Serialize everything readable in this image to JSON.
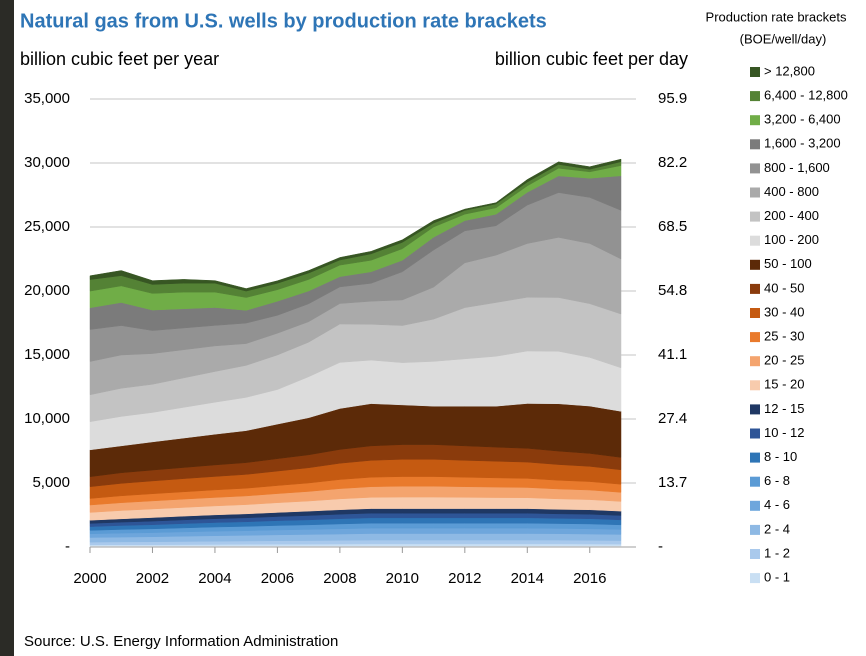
{
  "chart_data": {
    "type": "stacked-area",
    "title": "Natural gas from U.S. wells by production rate brackets",
    "ylabel": "billion cubic feet per year",
    "y2label": "billion cubic feet per day",
    "legend_title": "Production rate brackets",
    "legend_subtitle": "(BOE/well/day)",
    "source": "Source: U.S. Energy Information Administration",
    "x": [
      2000,
      2001,
      2002,
      2003,
      2004,
      2005,
      2006,
      2007,
      2008,
      2009,
      2010,
      2011,
      2012,
      2013,
      2014,
      2015,
      2016,
      2017
    ],
    "xlim": [
      2000,
      2017
    ],
    "xticks": [
      2000,
      2002,
      2004,
      2006,
      2008,
      2010,
      2012,
      2014,
      2016
    ],
    "ylim": [
      0,
      35000
    ],
    "yticks": [
      {
        "value": 0,
        "label": "-"
      },
      {
        "value": 5000,
        "label": "5,000"
      },
      {
        "value": 10000,
        "label": "10,000"
      },
      {
        "value": 15000,
        "label": "15,000"
      },
      {
        "value": 20000,
        "label": "20,000"
      },
      {
        "value": 25000,
        "label": "25,000"
      },
      {
        "value": 30000,
        "label": "30,000"
      },
      {
        "value": 35000,
        "label": "35,000"
      }
    ],
    "y2lim": [
      0,
      95.9
    ],
    "y2ticks": [
      {
        "value": 0,
        "label": "-"
      },
      13.7,
      27.4,
      41.1,
      54.8,
      68.5,
      82.2,
      95.9
    ],
    "grid": true,
    "legend": "right",
    "series": [
      {
        "name": "0 - 1",
        "color": "#c9dff3",
        "values": [
          170,
          180,
          180,
          190,
          200,
          210,
          220,
          220,
          230,
          240,
          240,
          240,
          240,
          240,
          240,
          240,
          230,
          220
        ]
      },
      {
        "name": "1 - 2",
        "color": "#a9c9ec",
        "values": [
          210,
          220,
          230,
          240,
          250,
          260,
          270,
          280,
          290,
          300,
          300,
          300,
          300,
          300,
          300,
          300,
          290,
          280
        ]
      },
      {
        "name": "2 - 4",
        "color": "#8eb9e4",
        "values": [
          360,
          370,
          390,
          410,
          430,
          440,
          460,
          480,
          490,
          510,
          510,
          510,
          510,
          510,
          510,
          500,
          490,
          480
        ]
      },
      {
        "name": "4 - 6",
        "color": "#6ea6dc",
        "values": [
          290,
          310,
          320,
          340,
          350,
          360,
          380,
          390,
          410,
          420,
          420,
          420,
          420,
          420,
          420,
          410,
          410,
          390
        ]
      },
      {
        "name": "6 - 8",
        "color": "#5b9bd5",
        "values": [
          270,
          290,
          300,
          310,
          330,
          340,
          350,
          360,
          380,
          390,
          390,
          390,
          390,
          390,
          390,
          380,
          380,
          360
        ]
      },
      {
        "name": "8 - 10",
        "color": "#2e75b6",
        "values": [
          290,
          310,
          320,
          340,
          350,
          360,
          380,
          390,
          410,
          420,
          420,
          420,
          420,
          420,
          420,
          410,
          410,
          390
        ]
      },
      {
        "name": "10 - 12",
        "color": "#2e5597",
        "values": [
          250,
          260,
          280,
          290,
          300,
          310,
          320,
          340,
          350,
          360,
          360,
          360,
          360,
          360,
          360,
          350,
          350,
          340
        ]
      },
      {
        "name": "12 - 15",
        "color": "#1f3864",
        "values": [
          250,
          260,
          280,
          290,
          300,
          310,
          320,
          340,
          350,
          360,
          360,
          360,
          360,
          360,
          360,
          350,
          350,
          340
        ]
      },
      {
        "name": "15 - 20",
        "color": "#f8cbad",
        "values": [
          610,
          650,
          670,
          680,
          700,
          720,
          760,
          790,
          850,
          880,
          900,
          900,
          880,
          860,
          850,
          820,
          790,
          760
        ]
      },
      {
        "name": "20 - 25",
        "color": "#f4a46e",
        "values": [
          580,
          610,
          630,
          650,
          660,
          680,
          710,
          750,
          800,
          830,
          850,
          850,
          830,
          820,
          800,
          770,
          750,
          710
        ]
      },
      {
        "name": "25 - 30",
        "color": "#e97a2c",
        "values": [
          510,
          540,
          560,
          570,
          590,
          600,
          630,
          660,
          710,
          740,
          750,
          750,
          740,
          720,
          710,
          680,
          660,
          630
        ]
      },
      {
        "name": "30 - 40",
        "color": "#c55a11",
        "values": [
          920,
          970,
          1000,
          1030,
          1050,
          1080,
          1130,
          1190,
          1270,
          1320,
          1350,
          1350,
          1320,
          1300,
          1270,
          1230,
          1190,
          1130
        ]
      },
      {
        "name": "40 - 50",
        "color": "#8a3b0c",
        "values": [
          780,
          830,
          850,
          870,
          900,
          920,
          970,
          1010,
          1080,
          1130,
          1150,
          1150,
          1130,
          1100,
          1080,
          1050,
          1010,
          970
        ]
      },
      {
        "name": "50 - 100",
        "color": "#5c2a08",
        "values": [
          2100,
          2100,
          2200,
          2300,
          2400,
          2500,
          2700,
          2900,
          3200,
          3300,
          3100,
          3000,
          3100,
          3200,
          3500,
          3700,
          3700,
          3600
        ]
      },
      {
        "name": "100 - 200",
        "color": "#dcdcdc",
        "values": [
          2200,
          2300,
          2300,
          2400,
          2500,
          2600,
          2700,
          3200,
          3600,
          3400,
          3300,
          3500,
          3700,
          3900,
          4100,
          4100,
          3800,
          3400
        ]
      },
      {
        "name": "200 - 400",
        "color": "#c3c3c3",
        "values": [
          2100,
          2200,
          2200,
          2300,
          2400,
          2500,
          2700,
          2700,
          3000,
          2800,
          2900,
          3300,
          4000,
          4200,
          4200,
          4200,
          4200,
          4200
        ]
      },
      {
        "name": "400 - 800",
        "color": "#aaaaaa",
        "values": [
          2600,
          2600,
          2400,
          2200,
          2000,
          1700,
          1700,
          1600,
          1600,
          1800,
          2000,
          2500,
          3500,
          3700,
          4200,
          4700,
          4700,
          4300
        ]
      },
      {
        "name": "800 - 1,600",
        "color": "#929292",
        "values": [
          2500,
          2300,
          1800,
          1700,
          1600,
          1600,
          1400,
          1400,
          1300,
          1400,
          2200,
          2900,
          2500,
          2300,
          3000,
          3500,
          3600,
          3800
        ]
      },
      {
        "name": "1,600 - 3,200",
        "color": "#7b7b7b",
        "values": [
          1700,
          1800,
          1600,
          1500,
          1400,
          1000,
          1100,
          1000,
          800,
          900,
          900,
          1000,
          800,
          900,
          1000,
          1300,
          1500,
          2700
        ]
      },
      {
        "name": "3,200 - 6,400",
        "color": "#70ad47",
        "values": [
          1300,
          1300,
          1300,
          1300,
          1200,
          1000,
          900,
          900,
          900,
          900,
          900,
          800,
          500,
          500,
          500,
          600,
          500,
          800
        ]
      },
      {
        "name": "6,400 - 12,800",
        "color": "#548235",
        "values": [
          900,
          800,
          700,
          700,
          700,
          500,
          500,
          500,
          400,
          500,
          500,
          300,
          300,
          300,
          300,
          300,
          200,
          300
        ]
      },
      {
        "name": "> 12,800",
        "color": "#375623",
        "values": [
          300,
          400,
          300,
          300,
          200,
          200,
          200,
          200,
          200,
          200,
          200,
          200,
          100,
          100,
          200,
          200,
          200,
          200
        ]
      }
    ]
  }
}
